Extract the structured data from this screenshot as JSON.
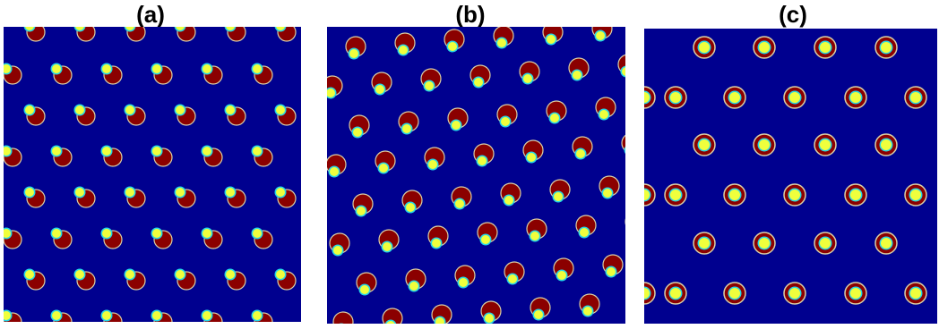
{
  "panels": [
    {
      "label": "(a)"
    },
    {
      "label": "(b)"
    },
    {
      "label": "(c)"
    }
  ],
  "colors": {
    "background": "#00008f",
    "dark_red": "#8b0000",
    "yellow": "#f0ff3c",
    "cyan": "#25d6e6",
    "rim": "#d9cfa6"
  }
}
